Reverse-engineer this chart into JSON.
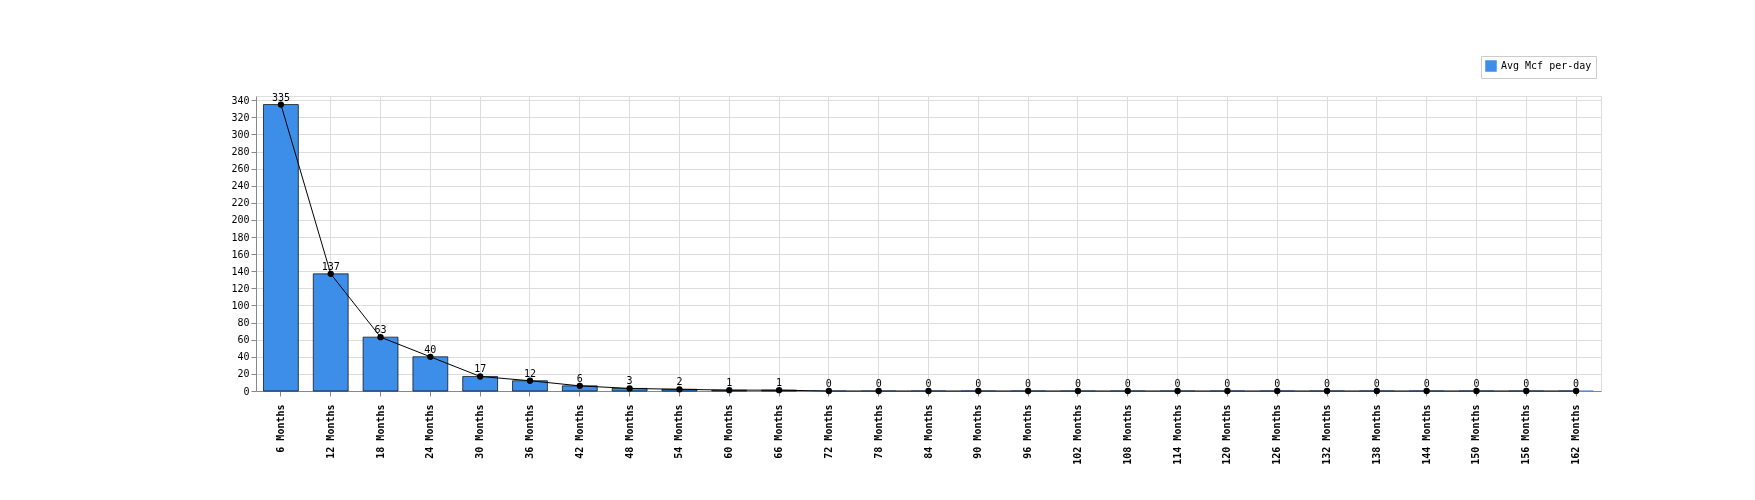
{
  "chart_data": {
    "type": "bar",
    "categories": [
      "6 Months",
      "12 Months",
      "18 Months",
      "24 Months",
      "30 Months",
      "36 Months",
      "42 Months",
      "48 Months",
      "54 Months",
      "60 Months",
      "66 Months",
      "72 Months",
      "78 Months",
      "84 Months",
      "90 Months",
      "96 Months",
      "102 Months",
      "108 Months",
      "114 Months",
      "120 Months",
      "126 Months",
      "132 Months",
      "138 Months",
      "144 Months",
      "150 Months",
      "156 Months",
      "162 Months"
    ],
    "series": [
      {
        "name": "Avg Mcf per-day",
        "color": "#3d8ee8",
        "values": [
          335,
          137,
          63,
          40,
          17,
          12,
          6,
          3,
          2,
          1,
          1,
          0,
          0,
          0,
          0,
          0,
          0,
          0,
          0,
          0,
          0,
          0,
          0,
          0,
          0,
          0,
          0
        ],
        "value_labels": [
          "335",
          "137",
          "63",
          "40",
          "17",
          "12",
          "6",
          "3",
          "2",
          "1",
          "1",
          "0",
          "0",
          "0",
          "0",
          "0",
          "0",
          "0",
          "0",
          "0",
          "0",
          "0",
          "0",
          "0",
          "0",
          "0",
          "0"
        ]
      },
      {
        "type": "line",
        "color": "#000000",
        "marker": "circle",
        "values": [
          335,
          137,
          63,
          40,
          17,
          12,
          6,
          3,
          2,
          1,
          1,
          0,
          0,
          0,
          0,
          0,
          0,
          0,
          0,
          0,
          0,
          0,
          0,
          0,
          0,
          0,
          0
        ]
      }
    ],
    "ylim": [
      0,
      345
    ],
    "yticks": [
      0,
      20,
      40,
      60,
      80,
      100,
      120,
      140,
      160,
      180,
      200,
      220,
      240,
      260,
      280,
      300,
      320,
      340
    ],
    "grid": true,
    "legend": "top right"
  }
}
